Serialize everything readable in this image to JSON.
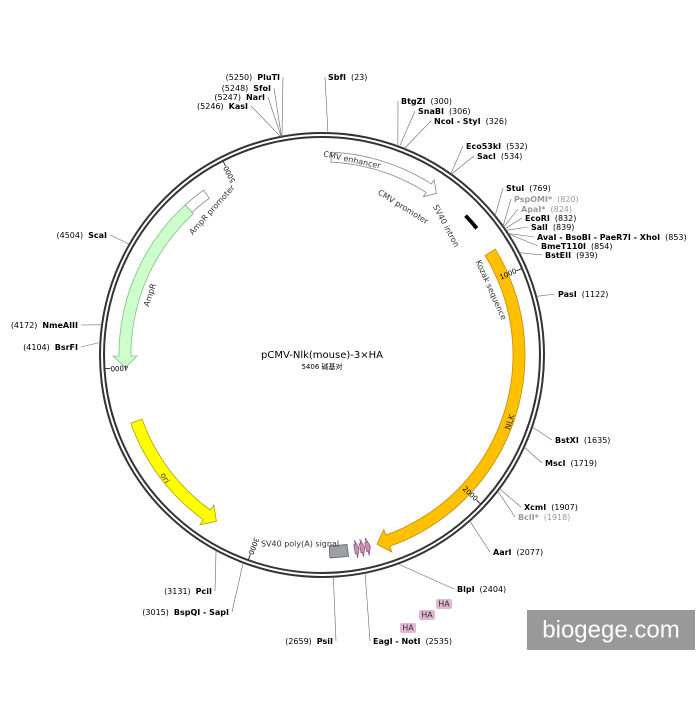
{
  "title": "pCMV-Nlk(mouse)-3×HA",
  "length": 5406,
  "length_label": "5406 碱基对",
  "ticks": [
    1000,
    2000,
    3000,
    4000,
    5000
  ],
  "sites": [
    {
      "name": "PluTI",
      "position": 5250,
      "position_label": "(5250)"
    },
    {
      "name": "SfoI",
      "position": 5248,
      "position_label": "(5248)"
    },
    {
      "name": "NarI",
      "position": 5247,
      "position_label": "(5247)"
    },
    {
      "name": "KasI",
      "position": 5246,
      "position_label": "(5246)"
    },
    {
      "name": "SbfI",
      "position": 23,
      "position_label": "(23)"
    },
    {
      "name": "BtgZI",
      "position": 300,
      "position_label": "(300)"
    },
    {
      "name": "SnaBI",
      "position": 306,
      "position_label": "(306)"
    },
    {
      "name": "NcoI - StyI",
      "position": 326,
      "position_label": "(326)"
    },
    {
      "name": "Eco53kI",
      "position": 532,
      "position_label": "(532)"
    },
    {
      "name": "SacI",
      "position": 534,
      "position_label": "(534)"
    },
    {
      "name": "StuI",
      "position": 769,
      "position_label": "(769)"
    },
    {
      "name": "PspOMI*",
      "position": 820,
      "position_label": "(820)",
      "color": "#999999"
    },
    {
      "name": "ApaI*",
      "position": 824,
      "position_label": "(824)",
      "color": "#999999"
    },
    {
      "name": "EcoRI",
      "position": 832,
      "position_label": "(832)"
    },
    {
      "name": "SalI",
      "position": 839,
      "position_label": "(839)"
    },
    {
      "name": "AvaI - BsoBI - PaeR7I - XhoI",
      "position": 853,
      "position_label": "(853)"
    },
    {
      "name": "BmeT110I",
      "position": 854,
      "position_label": "(854)"
    },
    {
      "name": "BstEII",
      "position": 939,
      "position_label": "(939)"
    },
    {
      "name": "PasI",
      "position": 1122,
      "position_label": "(1122)"
    },
    {
      "name": "BstXI",
      "position": 1635,
      "position_label": "(1635)"
    },
    {
      "name": "MscI",
      "position": 1719,
      "position_label": "(1719)"
    },
    {
      "name": "XcmI",
      "position": 1907,
      "position_label": "(1907)"
    },
    {
      "name": "BclI*",
      "position": 1918,
      "position_label": "(1918)",
      "color": "#999999"
    },
    {
      "name": "AarI",
      "position": 2077,
      "position_label": "(2077)"
    },
    {
      "name": "BlpI",
      "position": 2404,
      "position_label": "(2404)"
    },
    {
      "name": "EagI - NotI",
      "position": 2535,
      "position_label": "(2535)"
    },
    {
      "name": "PsiI",
      "position": 2659,
      "position_label": "(2659)"
    },
    {
      "name": "PciI",
      "position": 3131,
      "position_label": "(3131)"
    },
    {
      "name": "BspQI - SapI",
      "position": 3015,
      "position_label": "(3015)"
    },
    {
      "name": "ScaI",
      "position": 4504,
      "position_label": "(4504)"
    },
    {
      "name": "NmeAIII",
      "position": 4172,
      "position_label": "(4172)"
    },
    {
      "name": "BsrFI",
      "position": 4104,
      "position_label": "(4104)"
    }
  ],
  "features": [
    {
      "label": "CMV enhancer"
    },
    {
      "label": "CMV promoter"
    },
    {
      "label": "SV40 intron"
    },
    {
      "label": "Kozak sequence"
    },
    {
      "label": "NLK"
    },
    {
      "label": "SV40 poly(A) signal"
    },
    {
      "label": "HA"
    },
    {
      "label": "HA"
    },
    {
      "label": "HA"
    },
    {
      "label": "AmpR promoter"
    },
    {
      "label": "AmpR"
    },
    {
      "label": "ori"
    }
  ],
  "watermark": "biogege.com"
}
